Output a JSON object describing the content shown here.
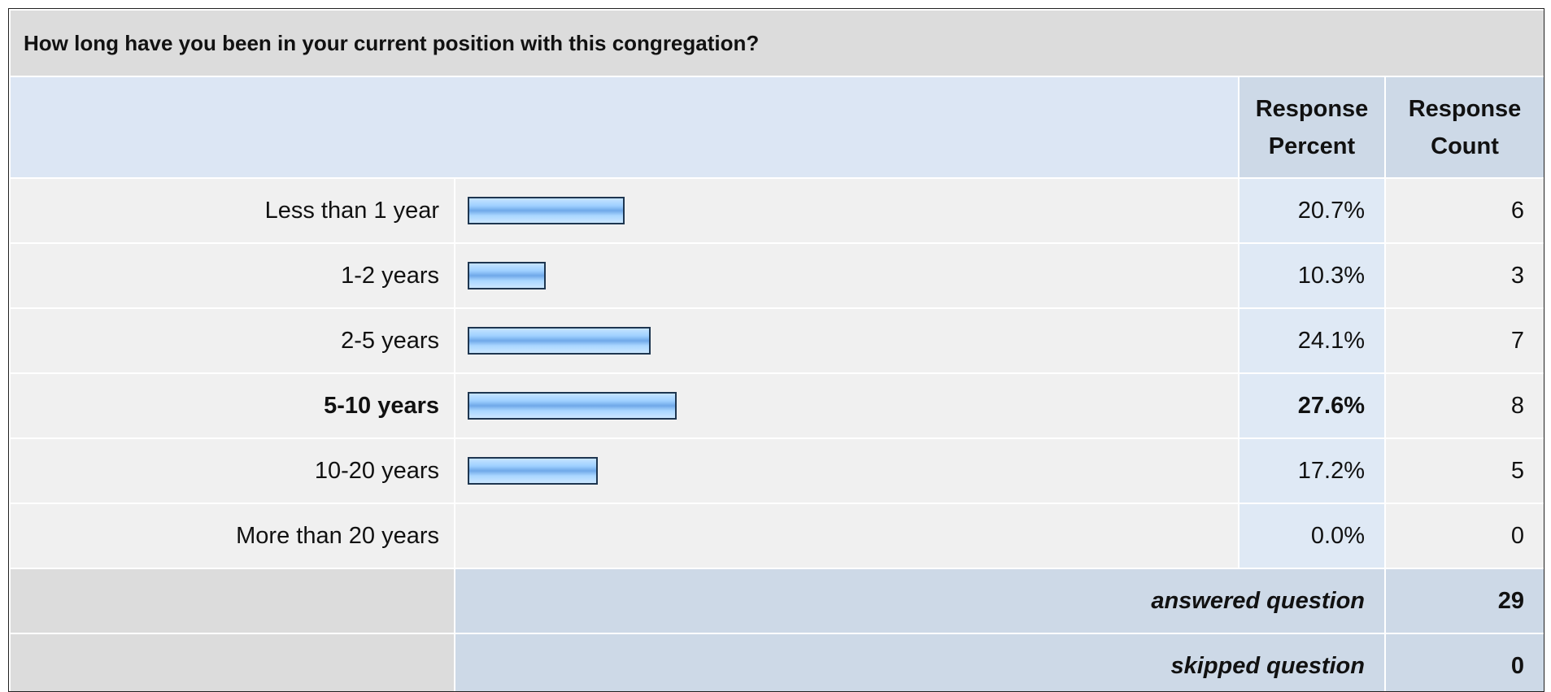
{
  "title": "How long have you been in your current position with this congregation?",
  "header": {
    "percent": "Response Percent",
    "count": "Response Count"
  },
  "rows": [
    {
      "label": "Less than 1 year",
      "percent": 20.7,
      "percent_label": "20.7%",
      "count": 6
    },
    {
      "label": "1-2 years",
      "percent": 10.3,
      "percent_label": "10.3%",
      "count": 3
    },
    {
      "label": "2-5 years",
      "percent": 24.1,
      "percent_label": "24.1%",
      "count": 7
    },
    {
      "label": "5-10 years",
      "percent": 27.6,
      "percent_label": "27.6%",
      "count": 8,
      "bold": true
    },
    {
      "label": "10-20 years",
      "percent": 17.2,
      "percent_label": "17.2%",
      "count": 5
    },
    {
      "label": "More than 20 years",
      "percent": 0.0,
      "percent_label": "0.0%",
      "count": 0
    }
  ],
  "answered": {
    "label": "answered question",
    "count": 29
  },
  "skipped": {
    "label": "skipped question",
    "count": 0
  }
}
